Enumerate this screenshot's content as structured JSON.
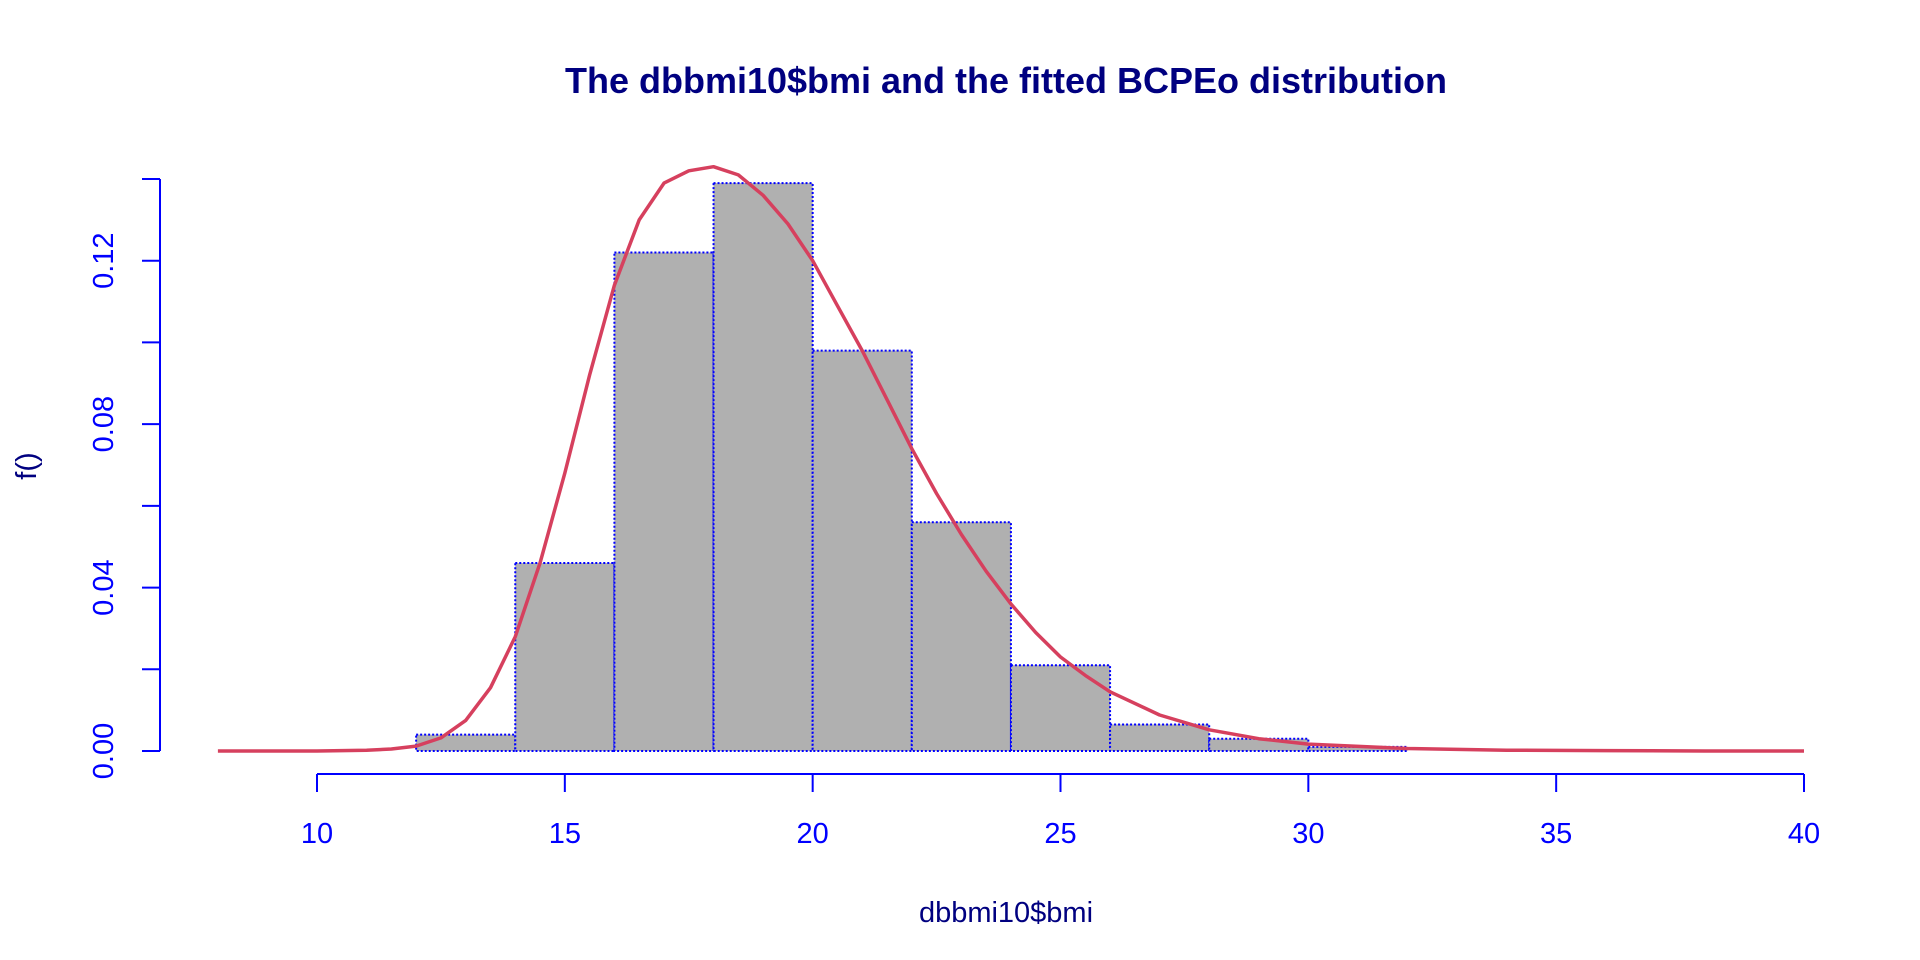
{
  "chart_data": {
    "type": "bar",
    "title": "The dbbmi10$bmi and the fitted BCPEo distribution",
    "xlabel": "dbbmi10$bmi",
    "ylabel": "f()",
    "xlim": [
      8,
      40
    ],
    "ylim": [
      0,
      0.14
    ],
    "x_ticks": [
      10,
      15,
      20,
      25,
      30,
      35,
      40
    ],
    "y_ticks": [
      0,
      0.04,
      0.08,
      0.12
    ],
    "x_tick_labels": [
      "10",
      "15",
      "20",
      "25",
      "30",
      "35",
      "40"
    ],
    "y_tick_labels": [
      "0.00",
      "0.04",
      "0.08",
      "0.12"
    ],
    "histogram": {
      "bins": [
        {
          "from": 12,
          "to": 14,
          "density": 0.004
        },
        {
          "from": 14,
          "to": 16,
          "density": 0.046
        },
        {
          "from": 16,
          "to": 18,
          "density": 0.122
        },
        {
          "from": 18,
          "to": 20,
          "density": 0.139
        },
        {
          "from": 20,
          "to": 22,
          "density": 0.098
        },
        {
          "from": 22,
          "to": 24,
          "density": 0.056
        },
        {
          "from": 24,
          "to": 26,
          "density": 0.021
        },
        {
          "from": 26,
          "to": 28,
          "density": 0.0065
        },
        {
          "from": 28,
          "to": 30,
          "density": 0.003
        },
        {
          "from": 30,
          "to": 32,
          "density": 0.001
        }
      ]
    },
    "fitted_curve": {
      "x": [
        8,
        10,
        11,
        11.5,
        12,
        12.5,
        13,
        13.5,
        14,
        14.5,
        15,
        15.5,
        16,
        16.5,
        17,
        17.5,
        18,
        18.5,
        19,
        19.5,
        20,
        20.5,
        21,
        21.5,
        22,
        22.5,
        23,
        23.5,
        24,
        24.5,
        25,
        25.5,
        26,
        27,
        28,
        29,
        30,
        32,
        34,
        36,
        38,
        40
      ],
      "y": [
        0,
        0,
        0.0002,
        0.0005,
        0.0012,
        0.0032,
        0.0075,
        0.0155,
        0.028,
        0.046,
        0.068,
        0.092,
        0.114,
        0.13,
        0.139,
        0.142,
        0.143,
        0.141,
        0.136,
        0.129,
        0.12,
        0.109,
        0.098,
        0.086,
        0.074,
        0.063,
        0.053,
        0.044,
        0.036,
        0.029,
        0.023,
        0.0185,
        0.0145,
        0.0088,
        0.0052,
        0.003,
        0.0017,
        0.0006,
        0.0002,
        0.0001,
        0,
        0
      ]
    },
    "colors": {
      "title": "#000080",
      "axis": "#0000ff",
      "axis_title": "#000080",
      "bar_fill": "#b0b0b0",
      "bar_border": "#0000ff",
      "curve": "#d6405e"
    }
  }
}
